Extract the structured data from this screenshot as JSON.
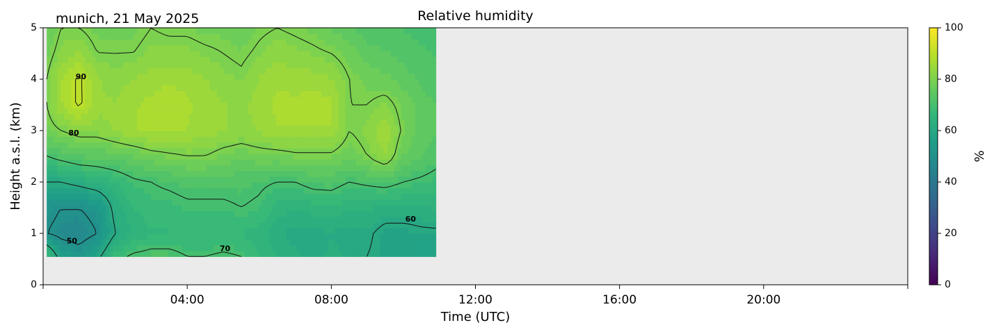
{
  "chart_data": {
    "type": "heatmap",
    "title": "Relative humidity",
    "subtitle": "munich, 21 May 2025",
    "xlabel": "Time (UTC)",
    "ylabel": "Height a.s.l. (km)",
    "x_unit": "hours UTC",
    "xlim": [
      0,
      24
    ],
    "ylim": [
      0,
      5
    ],
    "x_ticks": [
      {
        "value": 4,
        "label": "04:00"
      },
      {
        "value": 8,
        "label": "08:00"
      },
      {
        "value": 12,
        "label": "12:00"
      },
      {
        "value": 16,
        "label": "16:00"
      },
      {
        "value": 20,
        "label": "20:00"
      }
    ],
    "x_minor_ticks": [
      0,
      24
    ],
    "y_ticks": [
      0,
      1,
      2,
      3,
      4,
      5
    ],
    "colorbar": {
      "label": "%",
      "range": [
        0,
        100
      ],
      "ticks": [
        0,
        20,
        40,
        60,
        80,
        100
      ],
      "colormap": "viridis"
    },
    "data_extent": {
      "x": [
        0.1,
        10.9
      ],
      "y": [
        0.55,
        5.0
      ]
    },
    "missing_color": "#ebebeb",
    "x": [
      0.1,
      0.5,
      1,
      1.5,
      2,
      2.5,
      3,
      3.5,
      4,
      4.5,
      5,
      5.5,
      6,
      6.5,
      7,
      7.5,
      8,
      8.5,
      9,
      9.5,
      10,
      10.5,
      10.9
    ],
    "y": [
      0.55,
      1.0,
      1.5,
      2.0,
      2.5,
      3.0,
      3.5,
      4.0,
      4.5,
      5.0
    ],
    "z": [
      [
        70,
        56,
        53,
        58,
        68,
        71,
        72,
        72,
        70,
        70,
        71,
        70,
        66,
        64,
        62,
        60,
        62,
        61,
        60,
        58,
        58,
        56,
        56
      ],
      [
        50,
        48,
        47,
        50,
        60,
        64,
        66,
        66,
        66,
        66,
        66,
        66,
        65,
        62,
        60,
        60,
        61,
        60,
        61,
        58,
        58,
        59,
        59
      ],
      [
        52,
        50,
        50,
        52,
        62,
        66,
        68,
        68,
        69,
        69,
        69,
        70,
        69,
        65,
        64,
        65,
        66,
        64,
        64,
        63,
        63,
        63,
        64
      ],
      [
        60,
        60,
        62,
        64,
        66,
        69,
        70,
        71,
        72,
        72,
        72,
        72,
        71,
        70,
        70,
        72,
        72,
        70,
        71,
        72,
        70,
        69,
        68
      ],
      [
        70,
        72,
        74,
        74,
        75,
        76,
        78,
        79,
        80,
        80,
        78,
        77,
        78,
        78,
        79,
        79,
        79,
        77,
        80,
        84,
        76,
        74,
        72
      ],
      [
        78,
        80,
        82,
        82,
        84,
        86,
        87,
        87,
        86,
        85,
        84,
        83,
        84,
        86,
        86,
        86,
        86,
        80,
        82,
        86,
        79,
        75,
        74
      ],
      [
        80,
        86,
        91,
        85,
        84,
        86,
        87,
        88,
        87,
        85,
        84,
        83,
        85,
        87,
        87,
        88,
        87,
        80,
        80,
        82,
        78,
        75,
        74
      ],
      [
        80,
        86,
        91,
        84,
        82,
        84,
        85,
        86,
        85,
        84,
        82,
        81,
        84,
        86,
        85,
        85,
        84,
        80,
        78,
        77,
        75,
        73,
        72
      ],
      [
        78,
        82,
        84,
        80,
        80,
        80,
        82,
        82,
        82,
        81,
        80,
        79,
        81,
        83,
        82,
        81,
        80,
        78,
        75,
        74,
        73,
        72,
        71
      ],
      [
        76,
        80,
        80,
        78,
        78,
        78,
        80,
        79,
        79,
        78,
        78,
        77,
        79,
        80,
        79,
        78,
        76,
        74,
        72,
        72,
        71,
        70,
        70
      ]
    ],
    "contour_levels": [
      50,
      60,
      70,
      80,
      90
    ],
    "contour_labels": [
      {
        "text": "90",
        "x": 1.05,
        "y": 4.05
      },
      {
        "text": "80",
        "x": 0.85,
        "y": 2.95
      },
      {
        "text": "70",
        "x": 5.05,
        "y": 0.7
      },
      {
        "text": "60",
        "x": 10.2,
        "y": 1.28
      },
      {
        "text": "50",
        "x": 0.8,
        "y": 0.85
      }
    ]
  }
}
